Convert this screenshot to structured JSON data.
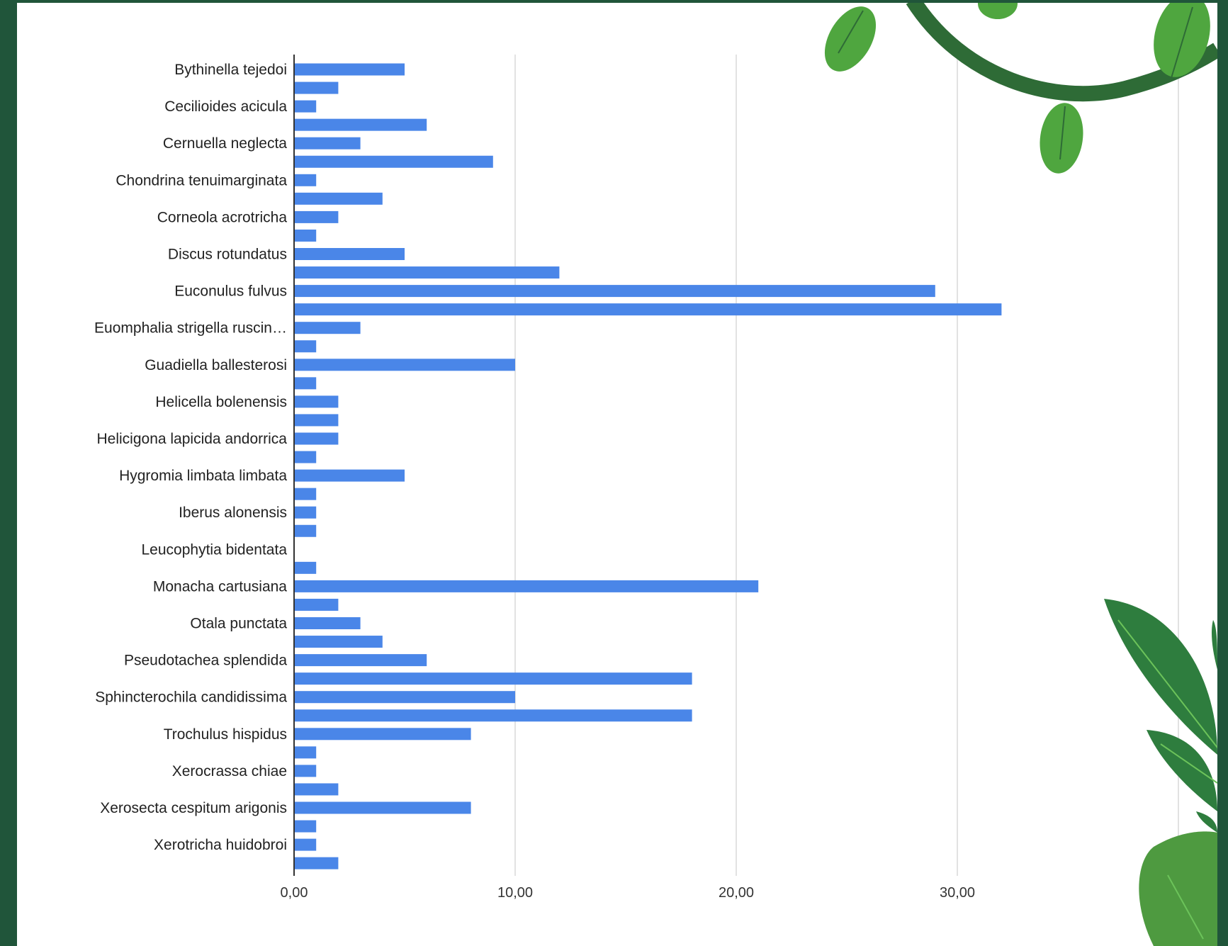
{
  "chart_data": {
    "type": "bar",
    "orientation": "horizontal",
    "title": "",
    "xlabel": "",
    "ylabel": "",
    "xlim": [
      0,
      40
    ],
    "grid": true,
    "legend": "none",
    "bar_color": "#4a86e8",
    "x_ticks": [
      "0,00",
      "10,00",
      "20,00",
      "30,00"
    ],
    "x_tick_values": [
      0,
      10,
      20,
      30
    ],
    "labeled_categories": [
      "Bythinella tejedoi",
      "Cecilioides acicula",
      "Cernuella neglecta",
      "Chondrina tenuimarginata",
      "Corneola acrotricha",
      "Discus rotundatus",
      "Euconulus fulvus",
      "Euomphalia strigella ruscin…",
      "Guadiella ballesterosi",
      "Helicella bolenensis",
      "Helicigona lapicida andorrica",
      "Hygromia limbata limbata",
      "Iberus alonensis",
      "Leucophytia bidentata",
      "Monacha cartusiana",
      "Otala punctata",
      "Pseudotachea splendida",
      "Sphincterochila candidissima",
      "Trochulus hispidus",
      "Xerocrassa chiae",
      "Xerosecta cespitum arigonis",
      "Xerotricha huidobroi"
    ],
    "values": [
      5,
      2,
      1,
      6,
      3,
      9,
      1,
      4,
      2,
      1,
      5,
      12,
      29,
      32,
      3,
      1,
      10,
      1,
      2,
      2,
      2,
      1,
      5,
      1,
      1,
      1,
      0,
      1,
      21,
      2,
      3,
      4,
      6,
      18,
      10,
      18,
      8,
      1,
      1,
      2,
      8,
      1,
      1,
      2
    ]
  },
  "colors": {
    "page_border": "#20553a",
    "background": "#ffffff",
    "grid": "#d9d9d9",
    "axis": "#333333",
    "leaf_light": "#4fa63f",
    "leaf_dark": "#2e7d3e"
  }
}
